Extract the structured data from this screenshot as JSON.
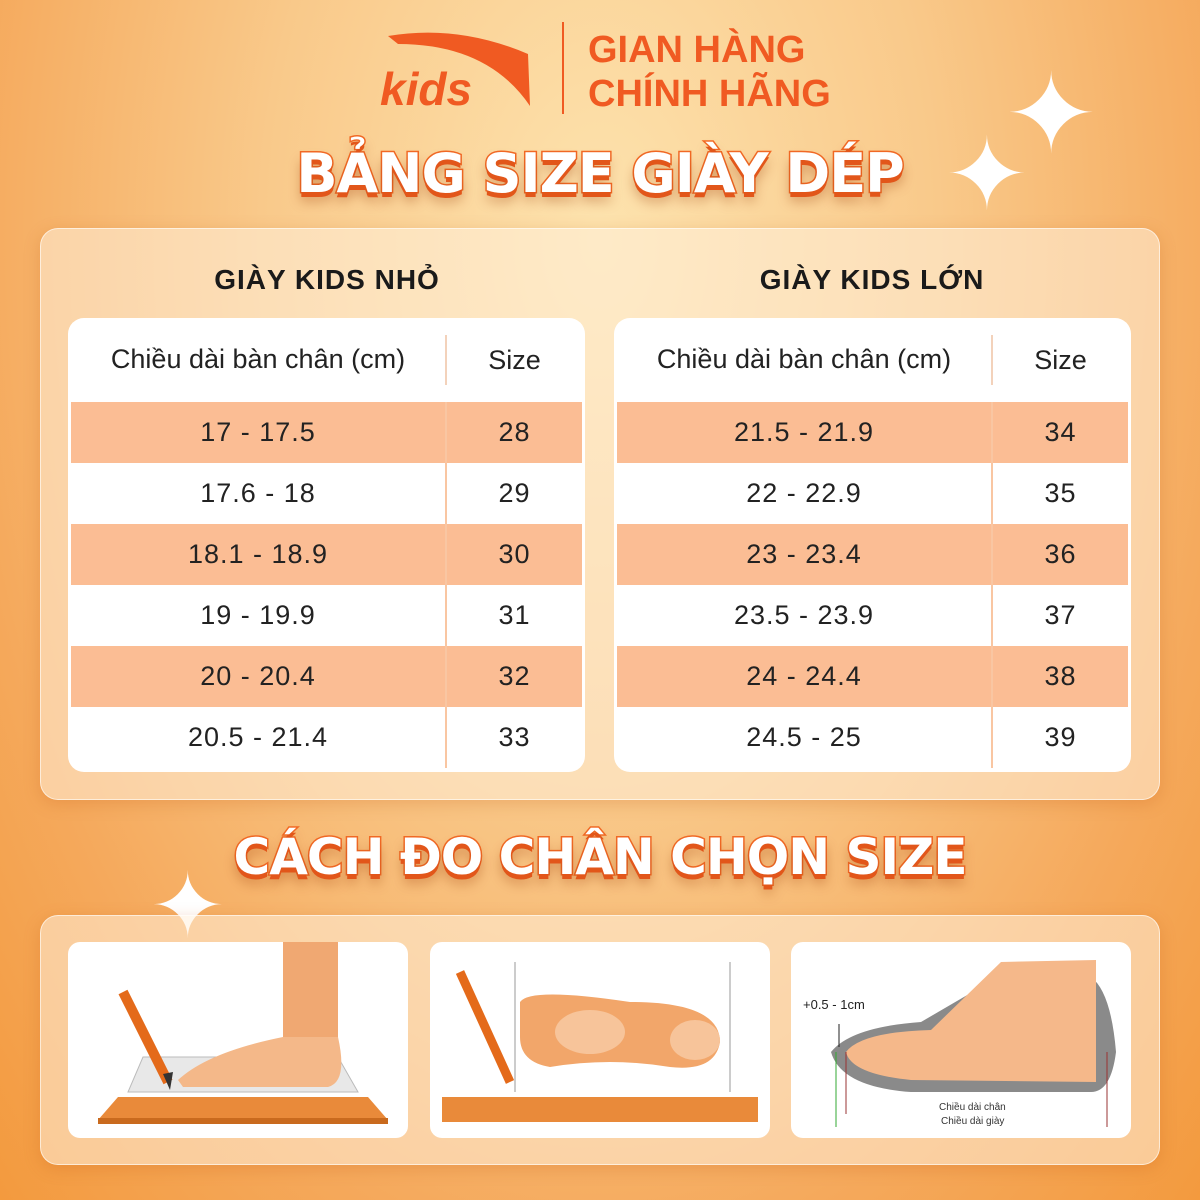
{
  "brand": {
    "logo_text": "kids",
    "line1": "GIAN HÀNG",
    "line2": "CHÍNH HÃNG",
    "accent": "#f05a22"
  },
  "title": "BẢNG SIZE GIÀY DÉP",
  "tables": [
    {
      "heading": "GIÀY KIDS NHỎ",
      "columns": [
        "Chiều dài bàn chân (cm)",
        "Size"
      ],
      "rows": [
        [
          "17 - 17.5",
          "28"
        ],
        [
          "17.6 - 18",
          "29"
        ],
        [
          "18.1 - 18.9",
          "30"
        ],
        [
          "19 - 19.9",
          "31"
        ],
        [
          "20 - 20.4",
          "32"
        ],
        [
          "20.5 - 21.4",
          "33"
        ]
      ]
    },
    {
      "heading": "GIÀY KIDS LỚN",
      "columns": [
        "Chiều dài bàn chân (cm)",
        "Size"
      ],
      "rows": [
        [
          "21.5 - 21.9",
          "34"
        ],
        [
          "22 - 22.9",
          "35"
        ],
        [
          "23 - 23.4",
          "36"
        ],
        [
          "23.5 - 23.9",
          "37"
        ],
        [
          "24 - 24.4",
          "38"
        ],
        [
          "24.5 - 25",
          "39"
        ]
      ]
    }
  ],
  "subtitle": "CÁCH ĐO CHÂN CHỌN SIZE",
  "diagram": {
    "allowance": "+0.5 - 1cm",
    "foot_length": "Chiều dài chân",
    "shoe_length": "Chiều dài giày"
  },
  "colors": {
    "row_highlight": "#fbbd94"
  }
}
